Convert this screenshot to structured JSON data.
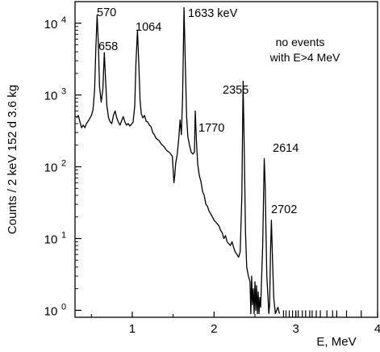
{
  "chart_data": {
    "type": "line",
    "title": "",
    "xlabel": "E, MeV",
    "ylabel": "Counts / 2 keV 152 d 3.6 kg",
    "xlim": [
      0.3,
      4.0
    ],
    "ylim": [
      0.8,
      20000
    ],
    "yscale": "log",
    "grid": false,
    "x_ticks": [
      {
        "value": 1,
        "label": "1"
      },
      {
        "value": 2,
        "label": "2"
      },
      {
        "value": 3,
        "label": "3"
      },
      {
        "value": 4,
        "label": "4"
      }
    ],
    "y_ticks": [
      {
        "value": 1,
        "label": "10",
        "exp": "0"
      },
      {
        "value": 10,
        "label": "10",
        "exp": "1"
      },
      {
        "value": 100,
        "label": "10",
        "exp": "2"
      },
      {
        "value": 1000,
        "label": "10",
        "exp": "3"
      },
      {
        "value": 10000,
        "label": "10",
        "exp": "4"
      }
    ],
    "series": [
      {
        "color": "#000000",
        "points": [
          [
            0.32,
            480
          ],
          [
            0.34,
            520
          ],
          [
            0.36,
            420
          ],
          [
            0.38,
            350
          ],
          [
            0.4,
            380
          ],
          [
            0.42,
            350
          ],
          [
            0.44,
            400
          ],
          [
            0.46,
            430
          ],
          [
            0.48,
            470
          ],
          [
            0.5,
            520
          ],
          [
            0.52,
            620
          ],
          [
            0.54,
            1200
          ],
          [
            0.555,
            4500
          ],
          [
            0.57,
            13000
          ],
          [
            0.585,
            5200
          ],
          [
            0.6,
            1300
          ],
          [
            0.62,
            800
          ],
          [
            0.64,
            1200
          ],
          [
            0.658,
            3900
          ],
          [
            0.675,
            1500
          ],
          [
            0.69,
            700
          ],
          [
            0.71,
            480
          ],
          [
            0.73,
            420
          ],
          [
            0.75,
            400
          ],
          [
            0.77,
            520
          ],
          [
            0.79,
            600
          ],
          [
            0.81,
            480
          ],
          [
            0.83,
            420
          ],
          [
            0.85,
            380
          ],
          [
            0.87,
            440
          ],
          [
            0.89,
            500
          ],
          [
            0.91,
            420
          ],
          [
            0.93,
            380
          ],
          [
            0.95,
            400
          ],
          [
            0.97,
            370
          ],
          [
            0.99,
            390
          ],
          [
            1.01,
            420
          ],
          [
            1.03,
            700
          ],
          [
            1.045,
            2800
          ],
          [
            1.064,
            8000
          ],
          [
            1.08,
            2600
          ],
          [
            1.095,
            850
          ],
          [
            1.11,
            550
          ],
          [
            1.13,
            480
          ],
          [
            1.15,
            520
          ],
          [
            1.17,
            430
          ],
          [
            1.19,
            420
          ],
          [
            1.21,
            380
          ],
          [
            1.23,
            360
          ],
          [
            1.25,
            300
          ],
          [
            1.27,
            280
          ],
          [
            1.29,
            250
          ],
          [
            1.31,
            240
          ],
          [
            1.33,
            230
          ],
          [
            1.35,
            210
          ],
          [
            1.37,
            200
          ],
          [
            1.39,
            190
          ],
          [
            1.41,
            175
          ],
          [
            1.43,
            165
          ],
          [
            1.45,
            160
          ],
          [
            1.47,
            150
          ],
          [
            1.49,
            140
          ],
          [
            1.51,
            60
          ],
          [
            1.52,
            75
          ],
          [
            1.53,
            110
          ],
          [
            1.55,
            150
          ],
          [
            1.57,
            260
          ],
          [
            1.585,
            450
          ],
          [
            1.6,
            280
          ],
          [
            1.615,
            900
          ],
          [
            1.633,
            16500
          ],
          [
            1.65,
            2400
          ],
          [
            1.665,
            500
          ],
          [
            1.68,
            260
          ],
          [
            1.7,
            200
          ],
          [
            1.72,
            160
          ],
          [
            1.74,
            150
          ],
          [
            1.76,
            160
          ],
          [
            1.77,
            600
          ],
          [
            1.785,
            230
          ],
          [
            1.8,
            110
          ],
          [
            1.82,
            75
          ],
          [
            1.84,
            62
          ],
          [
            1.86,
            45
          ],
          [
            1.88,
            40
          ],
          [
            1.9,
            30
          ],
          [
            1.92,
            28
          ],
          [
            1.94,
            24
          ],
          [
            1.96,
            22
          ],
          [
            1.98,
            20
          ],
          [
            2.0,
            18
          ],
          [
            2.02,
            17
          ],
          [
            2.04,
            16
          ],
          [
            2.06,
            15
          ],
          [
            2.08,
            13
          ],
          [
            2.1,
            12
          ],
          [
            2.12,
            10
          ],
          [
            2.14,
            11
          ],
          [
            2.16,
            9
          ],
          [
            2.18,
            8.5
          ],
          [
            2.2,
            8
          ],
          [
            2.22,
            9
          ],
          [
            2.24,
            7.5
          ],
          [
            2.26,
            6.5
          ],
          [
            2.28,
            6
          ],
          [
            2.3,
            5.5
          ],
          [
            2.32,
            6.5
          ],
          [
            2.34,
            40
          ],
          [
            2.355,
            1550
          ],
          [
            2.37,
            160
          ],
          [
            2.385,
            12
          ],
          [
            2.4,
            4
          ],
          [
            2.42,
            3
          ],
          [
            2.44,
            2.5
          ],
          [
            2.45,
            0.9
          ],
          [
            2.46,
            3
          ],
          [
            2.47,
            1.2
          ],
          [
            2.48,
            2
          ],
          [
            2.49,
            0.9
          ],
          [
            2.5,
            2.5
          ],
          [
            2.51,
            1
          ],
          [
            2.52,
            2.2
          ],
          [
            2.53,
            0.9
          ],
          [
            2.54,
            1.8
          ],
          [
            2.55,
            0.9
          ],
          [
            2.56,
            1.5
          ],
          [
            2.57,
            1.1
          ],
          [
            2.58,
            2.5
          ],
          [
            2.595,
            8
          ],
          [
            2.614,
            130
          ],
          [
            2.625,
            60
          ],
          [
            2.635,
            12
          ],
          [
            2.645,
            3
          ],
          [
            2.66,
            1.5
          ],
          [
            2.67,
            0.9
          ],
          [
            2.68,
            1.2
          ],
          [
            2.69,
            6
          ],
          [
            2.702,
            18
          ],
          [
            2.715,
            5
          ],
          [
            2.73,
            1.5
          ],
          [
            2.75,
            0.9
          ],
          [
            2.78,
            1.1
          ],
          [
            2.8,
            0.9
          ]
        ]
      }
    ],
    "sparse_events": [
      2.85,
      2.88,
      2.92,
      2.96,
      3.0,
      3.03,
      3.08,
      3.12,
      3.17,
      3.2,
      3.25,
      3.3,
      3.38,
      3.45,
      3.5,
      3.62,
      3.8
    ],
    "annotations": [
      {
        "label": "570",
        "x": 0.57
      },
      {
        "label": "658",
        "x": 0.658
      },
      {
        "label": "1064",
        "x": 1.064
      },
      {
        "label": "1633 keV",
        "x": 1.633
      },
      {
        "label": "1770",
        "x": 1.77
      },
      {
        "label": "2355",
        "x": 2.355
      },
      {
        "label": "2614",
        "x": 2.614
      },
      {
        "label": "2702",
        "x": 2.702
      }
    ],
    "note": [
      "no events",
      "with E>4 MeV"
    ]
  }
}
